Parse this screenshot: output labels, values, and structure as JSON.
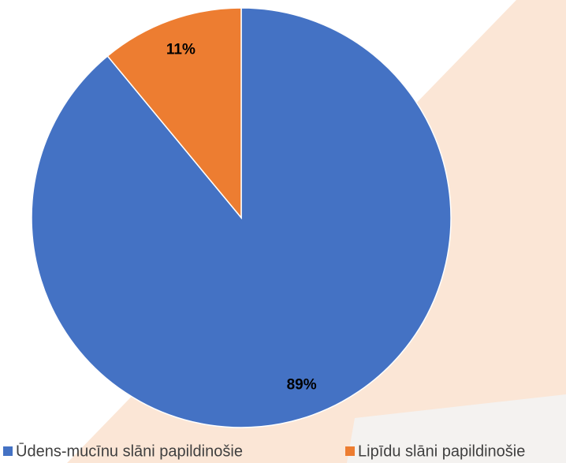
{
  "chart_data": {
    "type": "pie",
    "categories": [
      "Ūdens-mucīnu slāni papildinošie",
      "Lipīdu slāni papildinošie"
    ],
    "values": [
      89,
      11
    ],
    "value_labels": [
      "89%",
      "11%"
    ],
    "colors": [
      "#4472c4",
      "#ed7d31"
    ],
    "legend": "bottom"
  }
}
